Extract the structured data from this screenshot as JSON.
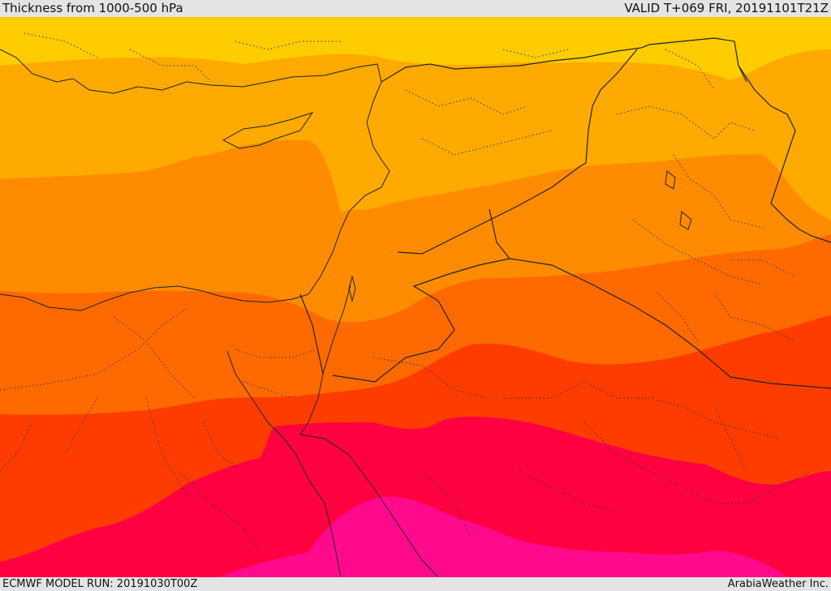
{
  "header": {
    "title": "Thickness from 1000-500 hPa",
    "valid": "VALID T+069 FRI, 20191101T21Z"
  },
  "footer": {
    "model_run": "ECMWF MODEL RUN: 20191030T00Z",
    "credit": "ArabiaWeather Inc."
  },
  "map": {
    "color_bands": {
      "band_1": "#ffcc00",
      "band_2": "#ffaa00",
      "band_3": "#ff8c00",
      "band_4": "#ff6a00",
      "band_5": "#ff3c00",
      "band_6": "#ff0040",
      "band_7": "#ff0a8c"
    }
  }
}
